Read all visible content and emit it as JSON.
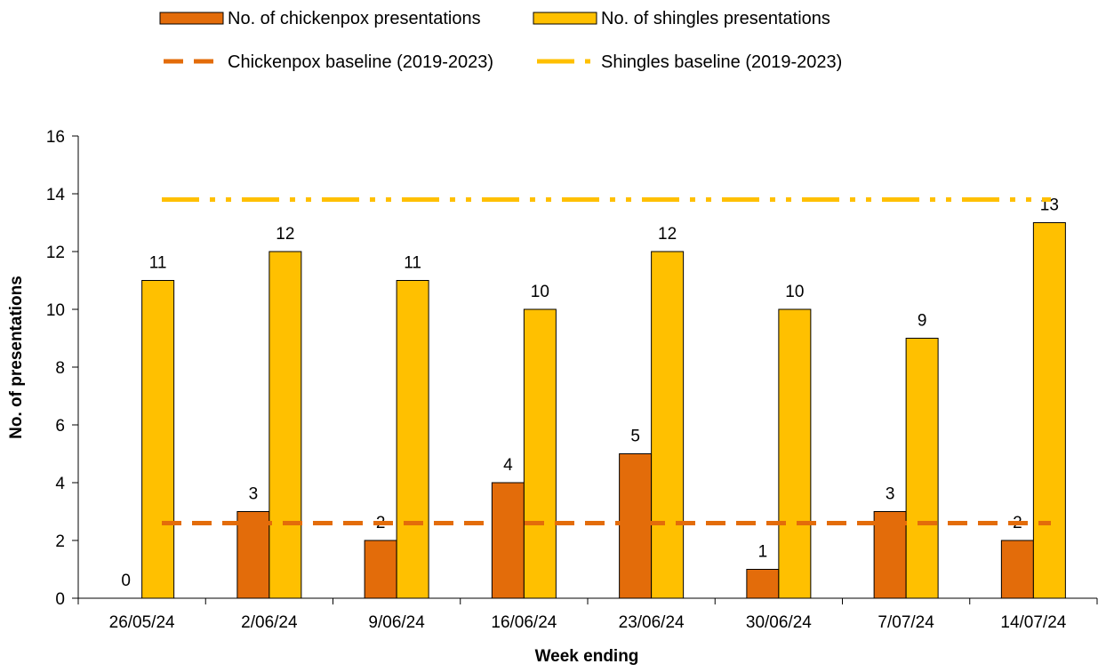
{
  "chart_data": {
    "type": "bar",
    "title": "",
    "xlabel": "Week ending",
    "ylabel": "No. of presentations",
    "ylim": [
      0,
      16
    ],
    "yticks": [
      0,
      2,
      4,
      6,
      8,
      10,
      12,
      14,
      16
    ],
    "grid": false,
    "legend_position": "top",
    "categories": [
      "26/05/24",
      "2/06/24",
      "9/06/24",
      "16/06/24",
      "23/06/24",
      "30/06/24",
      "7/07/24",
      "14/07/24"
    ],
    "series": [
      {
        "name": "No. of chickenpox presentations",
        "type": "bar",
        "color": "#e36c0a",
        "values": [
          0,
          3,
          2,
          4,
          5,
          1,
          3,
          2
        ]
      },
      {
        "name": "No. of shingles presentations",
        "type": "bar",
        "color": "#ffc000",
        "values": [
          11,
          12,
          11,
          10,
          12,
          10,
          9,
          13
        ]
      },
      {
        "name": "Chickenpox baseline (2019-2023)",
        "type": "line",
        "style": "dashed",
        "color": "#e36c0a",
        "value": 2.6
      },
      {
        "name": "Shingles baseline (2019-2023)",
        "type": "line",
        "style": "dash-dot-dot",
        "color": "#ffc000",
        "value": 13.8
      }
    ]
  }
}
